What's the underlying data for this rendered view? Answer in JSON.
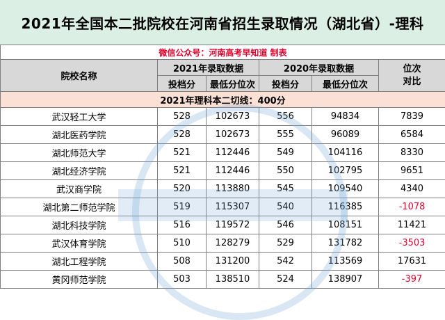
{
  "title": "2021年全国本二批院校在河南省招生录取情况（湖北省）-理科",
  "source": "微信公众号：河南高考早知道 制表",
  "headers": {
    "school": "院校名称",
    "y2021": "2021年录取数据",
    "y2020": "2020年录取数据",
    "rank_compare_1": "位次",
    "rank_compare_2": "对比",
    "score": "投档分",
    "min_rank": "最低分位次"
  },
  "cutoff_line": "2021年理科本二切线：400分",
  "rows": [
    {
      "name": "武汉轻工大学",
      "s2021": "528",
      "r2021": "102673",
      "s2020": "556",
      "r2020": "94834",
      "diff": "7839"
    },
    {
      "name": "湖北医药学院",
      "s2021": "528",
      "r2021": "102673",
      "s2020": "555",
      "r2020": "96089",
      "diff": "6584"
    },
    {
      "name": "湖北师范大学",
      "s2021": "521",
      "r2021": "112446",
      "s2020": "549",
      "r2020": "104116",
      "diff": "8330"
    },
    {
      "name": "湖北经济学院",
      "s2021": "521",
      "r2021": "112446",
      "s2020": "550",
      "r2020": "102795",
      "diff": "9651"
    },
    {
      "name": "武汉商学院",
      "s2021": "520",
      "r2021": "113880",
      "s2020": "545",
      "r2020": "109540",
      "diff": "4340"
    },
    {
      "name": "湖北第二师范学院",
      "s2021": "519",
      "r2021": "115307",
      "s2020": "540",
      "r2020": "116385",
      "diff": "-1078"
    },
    {
      "name": "湖北科技学院",
      "s2021": "516",
      "r2021": "119572",
      "s2020": "546",
      "r2020": "108151",
      "diff": "11421"
    },
    {
      "name": "武汉体育学院",
      "s2021": "510",
      "r2021": "128279",
      "s2020": "529",
      "r2020": "131782",
      "diff": "-3503"
    },
    {
      "name": "湖北工程学院",
      "s2021": "508",
      "r2021": "131200",
      "s2020": "542",
      "r2020": "113569",
      "diff": "17631"
    },
    {
      "name": "黄冈师范学院",
      "s2021": "503",
      "r2021": "138510",
      "s2020": "524",
      "r2020": "138907",
      "diff": "-397"
    }
  ],
  "colors": {
    "title_bg": "#dcefe4",
    "header_bg": "#d8d8d8",
    "cutoff_bg": "#fbe1d5",
    "diff_bg": "#e3f1d8",
    "negative": "#e0002b"
  }
}
